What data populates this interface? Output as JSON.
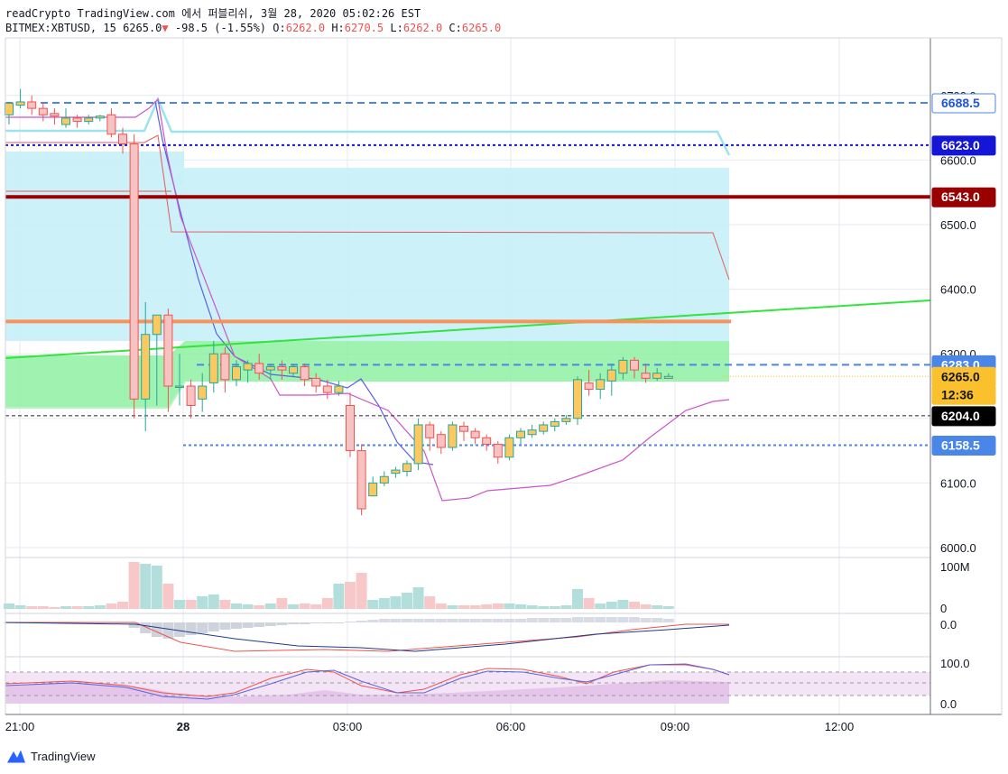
{
  "header": {
    "line1": "readCrypto TradingView.com 에서 퍼블리쉬, 3월 28, 2020 05:02:26 EST",
    "symbol": "BITMEX:XBTUSD, 15",
    "last": "6265.0",
    "change_arrow": "▼",
    "change": "-98.5 (-1.55%)",
    "o_label": "O:",
    "o_val": "6262.0",
    "h_label": "H:",
    "h_val": "6270.5",
    "l_label": "L:",
    "l_val": "6262.0",
    "c_label": "C:",
    "c_val": "6265.0"
  },
  "brand": {
    "name": "TradingView"
  },
  "colors": {
    "up": "#26a69a",
    "up_fill": "#fbc960",
    "down": "#ef5350",
    "grid": "#e6e9ef",
    "cyan_zone": "#c6eff7",
    "green_zone": "#8ef0a1",
    "trend_green": "#35e33d",
    "support_orange": "#f7935a",
    "resist_darkred": "#990000",
    "dash_blue": "#4a86e8",
    "dot_navy": "#1515d6"
  },
  "chart_data": {
    "type": "candlestick",
    "y_ticks": [
      "6000.0",
      "6100.0",
      "6200.0",
      "6300.0",
      "6400.0",
      "6500.0",
      "6600.0",
      "6700.0"
    ],
    "x_ticks": [
      "21:00",
      "28",
      "03:00",
      "06:00",
      "09:00",
      "12:00"
    ],
    "price_labels": [
      {
        "text": "6688.5",
        "price": 6688.5,
        "bg": "#ffffff",
        "fg": "#1e53e5",
        "border": "#4a86e8"
      },
      {
        "text": "6623.0",
        "price": 6623.0,
        "bg": "#1515d6",
        "fg": "#ffffff"
      },
      {
        "text": "6543.0",
        "price": 6543.0,
        "bg": "#990000",
        "fg": "#ffffff"
      },
      {
        "text": "6283.0",
        "price": 6283.0,
        "bg": "#4a86e8",
        "fg": "#ffffff"
      },
      {
        "text": "6265.0",
        "price": 6265.0,
        "bg": "#fbc02d",
        "fg": "#131722"
      },
      {
        "text": "12:36",
        "price": 6237.0,
        "bg": "#fbc02d",
        "fg": "#131722"
      },
      {
        "text": "6204.0",
        "price": 6204.0,
        "bg": "#000000",
        "fg": "#ffffff"
      },
      {
        "text": "6158.5",
        "price": 6158.5,
        "bg": "#4a86e8",
        "fg": "#ffffff"
      }
    ],
    "levels": {
      "dash_top": 6688.5,
      "dot_navy": 6623.0,
      "dark_red": 6543.0,
      "orange": 6350.0,
      "dash_mid": 6283.0,
      "black_dash": 6204.0,
      "dash_low": 6158.5
    },
    "candles": [
      [
        6670,
        6688,
        6655,
        6690
      ],
      [
        6685,
        6690,
        6680,
        6710
      ],
      [
        6690,
        6680,
        6670,
        6700
      ],
      [
        6680,
        6670,
        6660,
        6690
      ],
      [
        6672,
        6668,
        6655,
        6680
      ],
      [
        6655,
        6665,
        6650,
        6680
      ],
      [
        6665,
        6660,
        6650,
        6670
      ],
      [
        6660,
        6665,
        6655,
        6670
      ],
      [
        6665,
        6668,
        6660,
        6670
      ],
      [
        6670,
        6640,
        6635,
        6680
      ],
      [
        6640,
        6625,
        6610,
        6650
      ],
      [
        6625,
        6230,
        6200,
        6640
      ],
      [
        6230,
        6330,
        6180,
        6380
      ],
      [
        6330,
        6360,
        6220,
        6360
      ],
      [
        6360,
        6250,
        6210,
        6370
      ],
      [
        6250,
        6250,
        6220,
        6300
      ],
      [
        6250,
        6220,
        6200,
        6260
      ],
      [
        6230,
        6250,
        6210,
        6270
      ],
      [
        6255,
        6300,
        6240,
        6320
      ],
      [
        6300,
        6260,
        6240,
        6310
      ],
      [
        6260,
        6280,
        6250,
        6290
      ],
      [
        6275,
        6285,
        6255,
        6290
      ],
      [
        6285,
        6270,
        6260,
        6300
      ],
      [
        6275,
        6280,
        6260,
        6285
      ],
      [
        6280,
        6275,
        6260,
        6290
      ],
      [
        6270,
        6280,
        6265,
        6285
      ],
      [
        6280,
        6260,
        6250,
        6285
      ],
      [
        6262,
        6250,
        6240,
        6270
      ],
      [
        6250,
        6240,
        6230,
        6260
      ],
      [
        6240,
        6250,
        6235,
        6258
      ],
      [
        6220,
        6150,
        6140,
        6240
      ],
      [
        6150,
        6060,
        6050,
        6160
      ],
      [
        6080,
        6100,
        6080,
        6110
      ],
      [
        6100,
        6110,
        6095,
        6118
      ],
      [
        6115,
        6120,
        6108,
        6125
      ],
      [
        6118,
        6130,
        6110,
        6135
      ],
      [
        6130,
        6190,
        6120,
        6200
      ],
      [
        6190,
        6170,
        6150,
        6195
      ],
      [
        6175,
        6155,
        6145,
        6180
      ],
      [
        6155,
        6190,
        6150,
        6195
      ],
      [
        6188,
        6180,
        6165,
        6195
      ],
      [
        6180,
        6170,
        6160,
        6185
      ],
      [
        6170,
        6160,
        6150,
        6175
      ],
      [
        6160,
        6140,
        6130,
        6165
      ],
      [
        6140,
        6170,
        6135,
        6175
      ],
      [
        6170,
        6180,
        6160,
        6185
      ],
      [
        6175,
        6182,
        6170,
        6190
      ],
      [
        6180,
        6190,
        6175,
        6195
      ],
      [
        6188,
        6195,
        6180,
        6200
      ],
      [
        6195,
        6200,
        6190,
        6205
      ],
      [
        6200,
        6260,
        6190,
        6265
      ],
      [
        6255,
        6245,
        6235,
        6275
      ],
      [
        6245,
        6260,
        6230,
        6270
      ],
      [
        6258,
        6275,
        6235,
        6285
      ],
      [
        6270,
        6290,
        6260,
        6295
      ],
      [
        6290,
        6275,
        6262,
        6295
      ],
      [
        6270,
        6262,
        6255,
        6285
      ],
      [
        6262,
        6270,
        6258,
        6278
      ],
      [
        6262,
        6265,
        6262,
        6270
      ]
    ],
    "volume_label": "100M",
    "volume_zero": "0",
    "macd_label": "0.0",
    "stoch_labels": [
      "100.0",
      "0.0"
    ]
  }
}
